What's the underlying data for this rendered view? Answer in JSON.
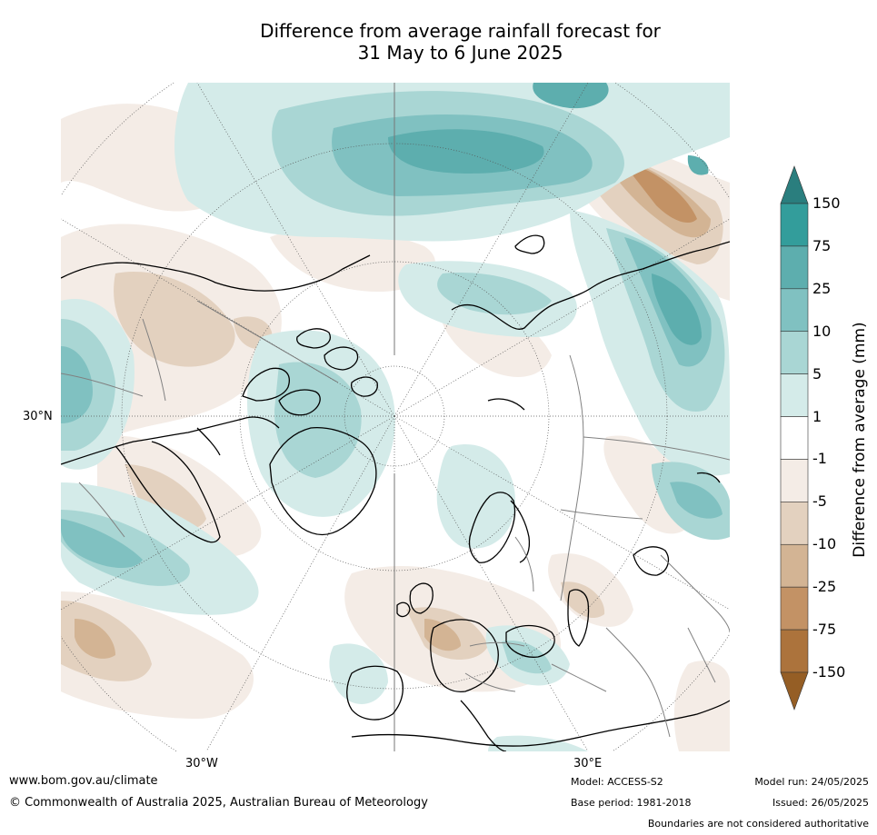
{
  "title": {
    "line1": "Difference from average rainfall forecast for",
    "line2": "31 May to 6 June 2025"
  },
  "map": {
    "projection": "north polar stereographic",
    "labels": {
      "lat_30n": "30°N",
      "lon_30w": "30°W",
      "lon_30e": "30°E"
    }
  },
  "colorbar": {
    "label": "Difference from average (mm)",
    "ticks": [
      "150",
      "75",
      "25",
      "10",
      "5",
      "1",
      "-1",
      "-5",
      "-10",
      "-25",
      "-75",
      "-150"
    ],
    "colors": {
      "over": "#2a7e7e",
      "b150": "#339d9b",
      "b75": "#5daeae",
      "b25": "#80c1c1",
      "b10": "#a9d6d4",
      "b5": "#d4ebe9",
      "b1": "#ffffff",
      "bm1": "#f4ece6",
      "bm5": "#e3d1bf",
      "bm10": "#d3b494",
      "bm25": "#c39265",
      "bm75": "#ac733c",
      "under": "#955e25"
    }
  },
  "footer": {
    "website": "www.bom.gov.au/climate",
    "copyright": "© Commonwealth of Australia 2025, Australian Bureau of Meteorology",
    "model": "Model: ACCESS-S2",
    "base_period": "Base period: 1981-2018",
    "model_run": "Model run: 24/05/2025",
    "issued": "Issued: 26/05/2025",
    "disclaimer": "Boundaries are not considered authoritative"
  }
}
